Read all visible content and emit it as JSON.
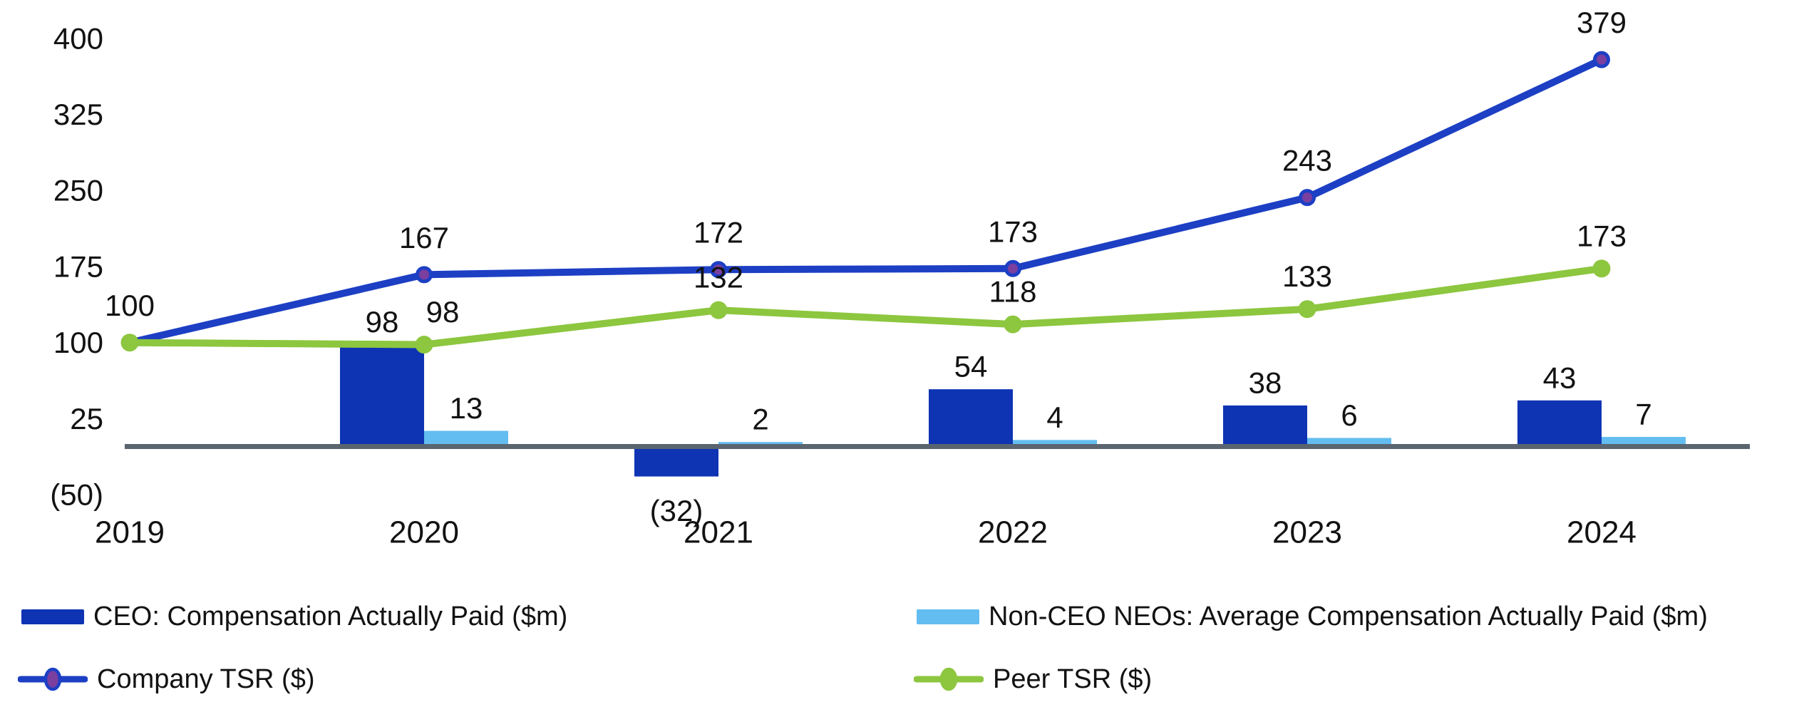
{
  "colors": {
    "ceo_bar": "#0e34b4",
    "nonceo_bar": "#63bdf0",
    "company_line": "#1d3fc4",
    "company_marker": "#7b3fa0",
    "peer_line": "#8dc63f",
    "axis": "#5a6570",
    "text": "#121212"
  },
  "chart_data": {
    "type": "combo-bar-line",
    "title": "",
    "categories": [
      "2019",
      "2020",
      "2021",
      "2022",
      "2023",
      "2024"
    ],
    "series": [
      {
        "name": "CEO: Compensation Actually Paid ($m)",
        "type": "bar",
        "values": [
          null,
          98,
          -32,
          54,
          38,
          43
        ],
        "labels": [
          "",
          "98",
          "(32)",
          "54",
          "38",
          "43"
        ]
      },
      {
        "name": "Non-CEO NEOs: Average Compensation Actually Paid ($m)",
        "type": "bar",
        "values": [
          null,
          13,
          2,
          4,
          6,
          7
        ],
        "labels": [
          "",
          "13",
          "2",
          "4",
          "6",
          "7"
        ]
      },
      {
        "name": "Company TSR ($)",
        "type": "line",
        "values": [
          100,
          167,
          172,
          173,
          243,
          379
        ],
        "labels": [
          "100",
          "167",
          "172",
          "173",
          "243",
          "379"
        ]
      },
      {
        "name": "Peer TSR ($)",
        "type": "line",
        "values": [
          100,
          98,
          132,
          118,
          133,
          173
        ],
        "labels": [
          "",
          "98",
          "132",
          "118",
          "133",
          "173"
        ]
      }
    ],
    "y_axis": {
      "range": [
        -50,
        400
      ],
      "ticks": [
        400,
        325,
        250,
        175,
        100,
        25,
        -50
      ],
      "tick_labels": [
        "400",
        "325",
        "250",
        "175",
        "100",
        "25",
        "(50)"
      ]
    },
    "x_axis": {
      "labels": [
        "2019",
        "2020",
        "2021",
        "2022",
        "2023",
        "2024"
      ]
    },
    "grid": false,
    "legend_position": "bottom"
  },
  "legend": {
    "items": [
      {
        "label": "CEO: Compensation Actually Paid ($m)",
        "swatch": "bar",
        "color_key": "ceo_bar"
      },
      {
        "label": "Non-CEO NEOs: Average Compensation Actually Paid ($m)",
        "swatch": "bar",
        "color_key": "nonceo_bar"
      },
      {
        "label": "Company TSR ($)",
        "swatch": "line-marker",
        "color_key": "company_line",
        "marker_color_key": "company_marker"
      },
      {
        "label": "Peer TSR ($)",
        "swatch": "line-marker",
        "color_key": "peer_line",
        "marker_color_key": "peer_line"
      }
    ]
  }
}
